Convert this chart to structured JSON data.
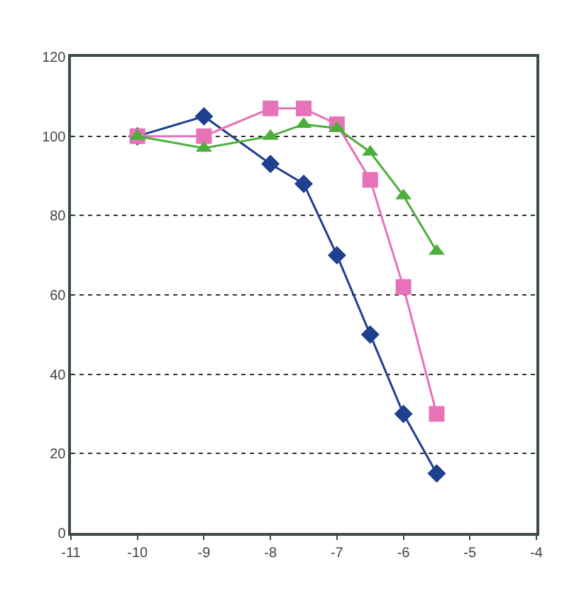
{
  "chart_data": {
    "type": "line",
    "x": [
      -10,
      -9,
      -8,
      -7.5,
      -7,
      -6.5,
      -6,
      -5.5
    ],
    "series": [
      {
        "color": "#1f3f8f",
        "marker": "diamond",
        "values": [
          100,
          105,
          93,
          88,
          70,
          50,
          30,
          15
        ]
      },
      {
        "color": "#e872b8",
        "marker": "square",
        "values": [
          100,
          100,
          107,
          107,
          103,
          89,
          62,
          30
        ]
      },
      {
        "color": "#4caf3a",
        "marker": "triangle",
        "values": [
          100,
          97,
          100,
          103,
          102,
          96,
          85,
          71
        ]
      }
    ],
    "xlim": [
      -11,
      -4
    ],
    "xticks": [
      -11,
      -10,
      -9,
      -8,
      -7,
      -6,
      -5,
      -4
    ],
    "ylim": [
      0,
      120
    ],
    "yticks": [
      0,
      20,
      40,
      60,
      80,
      100,
      120
    ],
    "grid": "y",
    "line_style": "solid"
  }
}
